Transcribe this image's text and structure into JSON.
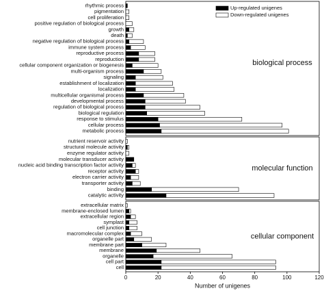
{
  "chart_data": [
    {
      "type": "bar",
      "orientation": "horizontal",
      "annotation": "biological process",
      "legend": "upper right",
      "categories": [
        "rhythmic process",
        "pigmentation",
        "cell proliferation",
        "positive regulation of biological process",
        "growth",
        "death",
        "negative regulation of biological process",
        "immune system process",
        "reproductive process",
        "reproduction",
        "cellular component organization or biogenesis",
        "multi-organism process",
        "signaling",
        "establishment of localization",
        "localization",
        "multicellular organismal process",
        "developmental process",
        "regulation of biological process",
        "biological regulation",
        "response to stimulus",
        "cellular process",
        "metabolic process"
      ],
      "series": [
        {
          "name": "Up-regulated unigenes",
          "color": "#000000",
          "values": [
            1,
            0,
            0,
            0,
            2,
            1,
            2,
            3,
            8,
            8,
            4,
            11,
            6,
            6,
            6,
            11,
            12,
            12,
            13,
            20,
            21,
            22
          ]
        },
        {
          "name": "Down-regulated unigenes",
          "color": "#ffffff",
          "values": [
            0,
            2,
            2,
            4,
            3,
            3,
            9,
            9,
            10,
            10,
            16,
            11,
            17,
            23,
            24,
            25,
            25,
            34,
            36,
            52,
            76,
            79
          ]
        }
      ],
      "xlim": [
        0,
        120
      ]
    },
    {
      "type": "bar",
      "orientation": "horizontal",
      "annotation": "molecular function",
      "categories": [
        "nutrient reservoir activity",
        "structural molecule activity",
        "enzyme regulator activity",
        "molecular transducer activity",
        "nucleic acid binding transcription factor activity",
        "receptor activity",
        "electron carrier activity",
        "transporter activity",
        "binding",
        "catalytic activity"
      ],
      "series": [
        {
          "color": "#000000",
          "values": [
            0,
            1,
            0,
            5,
            4,
            6,
            3,
            4,
            16,
            25
          ]
        },
        {
          "color": "#ffffff",
          "values": [
            1,
            1,
            2,
            0,
            2,
            2,
            5,
            5,
            54,
            67
          ]
        }
      ],
      "xlim": [
        0,
        120
      ]
    },
    {
      "type": "bar",
      "orientation": "horizontal",
      "annotation": "cellular component",
      "categories": [
        "extracellular matrix",
        "membrane-enclosed lumen",
        "extracellular region",
        "symplast",
        "cell junction",
        "macromolecular complex",
        "organelle part",
        "membrane part",
        "membrane",
        "organelle",
        "cell part",
        "cell"
      ],
      "series": [
        {
          "color": "#000000",
          "values": [
            0,
            2,
            3,
            2,
            2,
            3,
            5,
            10,
            19,
            17,
            22,
            22
          ]
        },
        {
          "color": "#ffffff",
          "values": [
            1,
            1,
            3,
            5,
            5,
            7,
            11,
            15,
            27,
            49,
            71,
            71
          ]
        }
      ],
      "xlim": [
        0,
        120
      ],
      "xticks": [
        0,
        20,
        40,
        60,
        80,
        100,
        120
      ],
      "xlabel": "Number of unigenes"
    }
  ]
}
